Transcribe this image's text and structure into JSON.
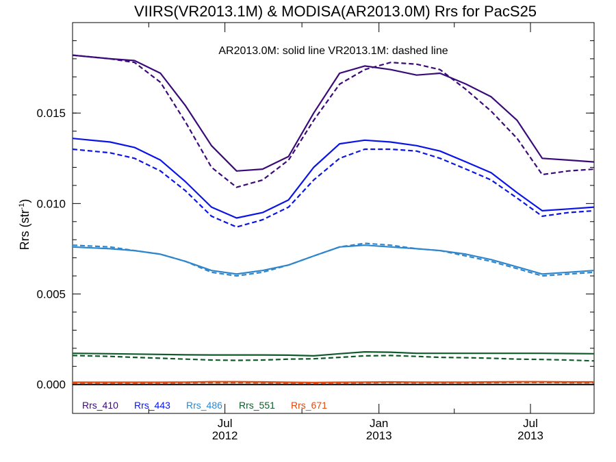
{
  "chart_data": {
    "type": "line",
    "title": "VIIRS(VR2013.1M) & MODISA(AR2013.0M)  Rrs for PacS25",
    "ylabel": "Rrs (str",
    "ylabel_sup": "-1",
    "ylabel_suffix": ")",
    "annotation": "AR2013.0M: solid line   VR2013.1M: dashed line",
    "xlim": [
      "2012-01-01",
      "2013-09-15"
    ],
    "ylim": [
      -0.0016,
      0.02
    ],
    "yticks": [
      {
        "value": 0.0,
        "label": "0.000"
      },
      {
        "value": 0.005,
        "label": "0.005"
      },
      {
        "value": 0.01,
        "label": "0.010"
      },
      {
        "value": 0.015,
        "label": "0.015"
      }
    ],
    "xticks": [
      {
        "date": "2012-07-01",
        "label": "Jul",
        "year": "2012"
      },
      {
        "date": "2013-01-01",
        "label": "Jan",
        "year": "2013"
      },
      {
        "date": "2013-07-01",
        "label": "Jul",
        "year": "2013"
      }
    ],
    "x": [
      "2012-01-01",
      "2012-02-15",
      "2012-03-15",
      "2012-04-15",
      "2012-05-15",
      "2012-06-15",
      "2012-07-15",
      "2012-08-15",
      "2012-09-15",
      "2012-10-15",
      "2012-11-15",
      "2012-12-15",
      "2013-01-15",
      "2013-02-15",
      "2013-03-15",
      "2013-04-15",
      "2013-05-15",
      "2013-06-15",
      "2013-07-15",
      "2013-08-15",
      "2013-09-15"
    ],
    "series": [
      {
        "name": "Rrs_410",
        "color": "#3a0a78",
        "style": "solid",
        "values": [
          0.0182,
          0.018,
          0.0179,
          0.0172,
          0.0154,
          0.0132,
          0.0118,
          0.0119,
          0.0126,
          0.015,
          0.0172,
          0.0176,
          0.0174,
          0.0171,
          0.0172,
          0.0166,
          0.0159,
          0.0146,
          0.0125,
          0.0124,
          0.0123
        ]
      },
      {
        "name": "Rrs_410",
        "color": "#3a0a78",
        "style": "dashed",
        "values": [
          0.0182,
          0.018,
          0.0178,
          0.0167,
          0.0145,
          0.012,
          0.0109,
          0.0113,
          0.0124,
          0.0146,
          0.0166,
          0.0174,
          0.0178,
          0.0177,
          0.0174,
          0.0163,
          0.0151,
          0.0136,
          0.0116,
          0.0118,
          0.0119
        ]
      },
      {
        "name": "Rrs_443",
        "color": "#0a14e6",
        "style": "solid",
        "values": [
          0.0136,
          0.0134,
          0.0131,
          0.0124,
          0.0112,
          0.0098,
          0.0092,
          0.0095,
          0.0102,
          0.012,
          0.0133,
          0.0135,
          0.0134,
          0.0132,
          0.0129,
          0.0123,
          0.0117,
          0.0106,
          0.0096,
          0.0097,
          0.0098
        ]
      },
      {
        "name": "Rrs_443",
        "color": "#0a14e6",
        "style": "dashed",
        "values": [
          0.013,
          0.0128,
          0.0125,
          0.0118,
          0.0107,
          0.0093,
          0.0087,
          0.0091,
          0.0098,
          0.0113,
          0.0125,
          0.013,
          0.013,
          0.0129,
          0.0125,
          0.0119,
          0.0113,
          0.0103,
          0.0093,
          0.0095,
          0.0096
        ]
      },
      {
        "name": "Rrs_486",
        "color": "#2f86cc",
        "style": "solid",
        "values": [
          0.0076,
          0.0075,
          0.0074,
          0.0072,
          0.0068,
          0.0063,
          0.0061,
          0.0063,
          0.0066,
          0.0071,
          0.0076,
          0.0077,
          0.0076,
          0.0075,
          0.0074,
          0.0072,
          0.0069,
          0.0065,
          0.0061,
          0.0062,
          0.0063
        ]
      },
      {
        "name": "Rrs_486",
        "color": "#2f86cc",
        "style": "dashed",
        "values": [
          0.0077,
          0.0076,
          0.0074,
          0.0072,
          0.0068,
          0.0062,
          0.006,
          0.0062,
          0.0066,
          0.0071,
          0.0076,
          0.0078,
          0.0077,
          0.0075,
          0.0074,
          0.0071,
          0.0068,
          0.0064,
          0.006,
          0.0061,
          0.0062
        ]
      },
      {
        "name": "Rrs_551",
        "color": "#0e5a2a",
        "style": "solid",
        "values": [
          0.00172,
          0.0017,
          0.00168,
          0.00166,
          0.00164,
          0.00163,
          0.00163,
          0.00163,
          0.00162,
          0.00158,
          0.0017,
          0.0018,
          0.00178,
          0.00172,
          0.00172,
          0.00172,
          0.00172,
          0.00172,
          0.00172,
          0.00171,
          0.0017
        ]
      },
      {
        "name": "Rrs_551",
        "color": "#0e5a2a",
        "style": "dashed",
        "values": [
          0.0016,
          0.00155,
          0.0015,
          0.00145,
          0.0014,
          0.00135,
          0.00133,
          0.00135,
          0.0014,
          0.00142,
          0.0015,
          0.00158,
          0.0016,
          0.00155,
          0.0015,
          0.00148,
          0.00145,
          0.0014,
          0.00138,
          0.00135,
          0.0013
        ]
      },
      {
        "name": "Rrs_671",
        "color": "#e0480e",
        "style": "solid",
        "values": [
          0.00012,
          0.00012,
          0.00012,
          0.00012,
          0.00013,
          0.00015,
          0.00015,
          0.00014,
          0.00012,
          0.00011,
          0.00012,
          0.00013,
          0.00014,
          0.00013,
          0.00013,
          0.00013,
          0.00014,
          0.00015,
          0.00015,
          0.00014,
          0.00014
        ]
      },
      {
        "name": "Rrs_671",
        "color": "#e0480e",
        "style": "dashed",
        "values": [
          8e-05,
          8e-05,
          8e-05,
          8e-05,
          9e-05,
          0.0001,
          0.0001,
          9e-05,
          8e-05,
          7e-05,
          8e-05,
          9e-05,
          0.0001,
          9e-05,
          9e-05,
          9e-05,
          0.0001,
          0.00011,
          0.00011,
          0.0001,
          0.0001
        ]
      }
    ],
    "legend": [
      {
        "label": "Rrs_410",
        "color": "#3a0a78"
      },
      {
        "label": "Rrs_443",
        "color": "#0a14e6"
      },
      {
        "label": "Rrs_486",
        "color": "#2f86cc"
      },
      {
        "label": "Rrs_551",
        "color": "#0e5a2a"
      },
      {
        "label": "Rrs_671",
        "color": "#e0480e"
      }
    ],
    "legend_position": "bottom-left"
  }
}
